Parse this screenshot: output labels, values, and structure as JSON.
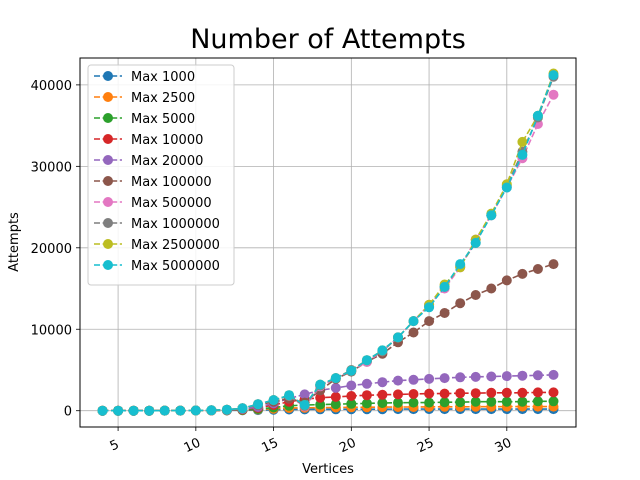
{
  "chart_data": {
    "type": "line",
    "title": "Number of Attempts",
    "xlabel": "Vertices",
    "ylabel": "Attempts",
    "xlim": [
      2.55,
      34.45
    ],
    "ylim": [
      -2000,
      43300
    ],
    "xticks": [
      5,
      10,
      15,
      20,
      25,
      30
    ],
    "yticks": [
      0,
      10000,
      20000,
      30000,
      40000
    ],
    "xtick_labels": [
      "5",
      "10",
      "15",
      "20",
      "25",
      "30"
    ],
    "ytick_labels": [
      "0",
      "10000",
      "20000",
      "30000",
      "40000"
    ],
    "grid": true,
    "legend_position": "upper-left",
    "x": [
      4,
      5,
      6,
      7,
      8,
      9,
      10,
      11,
      12,
      13,
      14,
      15,
      16,
      17,
      18,
      19,
      20,
      21,
      22,
      23,
      24,
      25,
      26,
      27,
      28,
      29,
      30,
      31,
      32,
      33
    ],
    "series": [
      {
        "name": "Max 1000",
        "color": "#1f77b4",
        "values": [
          1,
          2,
          3,
          5,
          8,
          12,
          20,
          30,
          40,
          60,
          80,
          120,
          150,
          160,
          170,
          175,
          180,
          185,
          190,
          195,
          200,
          200,
          200,
          200,
          200,
          200,
          200,
          200,
          200,
          200
        ]
      },
      {
        "name": "Max 2500",
        "color": "#ff7f0e",
        "values": [
          1,
          2,
          3,
          5,
          8,
          12,
          20,
          30,
          50,
          80,
          150,
          250,
          330,
          360,
          380,
          400,
          420,
          430,
          440,
          450,
          460,
          470,
          480,
          480,
          490,
          490,
          500,
          500,
          500,
          500
        ]
      },
      {
        "name": "Max 5000",
        "color": "#2ca02c",
        "values": [
          1,
          2,
          3,
          5,
          8,
          12,
          20,
          30,
          50,
          100,
          200,
          400,
          600,
          700,
          750,
          800,
          850,
          900,
          950,
          980,
          1000,
          1000,
          1050,
          1050,
          1100,
          1100,
          1100,
          1100,
          1150,
          1150
        ]
      },
      {
        "name": "Max 10000",
        "color": "#d62728",
        "values": [
          1,
          2,
          3,
          5,
          8,
          12,
          20,
          30,
          60,
          150,
          350,
          700,
          1100,
          1400,
          1600,
          1700,
          1800,
          1900,
          1950,
          2000,
          2050,
          2100,
          2100,
          2150,
          2150,
          2200,
          2200,
          2200,
          2250,
          2250
        ]
      },
      {
        "name": "Max 20000",
        "color": "#9467bd",
        "values": [
          1,
          2,
          3,
          5,
          8,
          12,
          20,
          40,
          80,
          200,
          450,
          900,
          1500,
          2000,
          2500,
          2800,
          3100,
          3300,
          3500,
          3700,
          3800,
          3900,
          4000,
          4100,
          4150,
          4200,
          4250,
          4300,
          4350,
          4400
        ]
      },
      {
        "name": "Max 100000",
        "color": "#8c564b",
        "values": [
          1,
          2,
          3,
          5,
          8,
          12,
          25,
          50,
          120,
          300,
          700,
          1100,
          1500,
          1000,
          2500,
          3900,
          4800,
          6000,
          7000,
          8400,
          9600,
          11000,
          12000,
          13200,
          14200,
          15000,
          16000,
          16800,
          17400,
          18000
        ]
      },
      {
        "name": "Max 500000",
        "color": "#e377c2",
        "values": [
          1,
          2,
          3,
          5,
          8,
          12,
          25,
          50,
          120,
          300,
          800,
          1300,
          1800,
          500,
          3000,
          4000,
          4900,
          6000,
          7300,
          9000,
          11000,
          13000,
          15000,
          17600,
          21000,
          24000,
          27400,
          31000,
          35200,
          38800
        ]
      },
      {
        "name": "Max 1000000",
        "color": "#7f7f7f",
        "values": [
          1,
          2,
          3,
          5,
          8,
          12,
          25,
          50,
          120,
          300,
          800,
          1300,
          1800,
          600,
          3100,
          4000,
          5000,
          6200,
          7300,
          9000,
          11000,
          12800,
          15200,
          17800,
          20600,
          24000,
          27600,
          31800,
          36000,
          41000
        ]
      },
      {
        "name": "Max 2500000",
        "color": "#bcbd22",
        "values": [
          1,
          2,
          3,
          5,
          8,
          12,
          25,
          50,
          120,
          300,
          800,
          1300,
          1900,
          700,
          3200,
          4000,
          4900,
          6200,
          7400,
          9000,
          11000,
          13000,
          15500,
          17600,
          21000,
          24200,
          27800,
          33000,
          36200,
          41400
        ]
      },
      {
        "name": "Max 5000000",
        "color": "#17becf",
        "values": [
          1,
          2,
          3,
          5,
          8,
          12,
          25,
          50,
          120,
          300,
          800,
          1300,
          1900,
          700,
          3200,
          4000,
          4900,
          6200,
          7400,
          9000,
          11000,
          12700,
          15200,
          18000,
          20600,
          24000,
          27400,
          31400,
          36200,
          41200
        ]
      }
    ]
  }
}
